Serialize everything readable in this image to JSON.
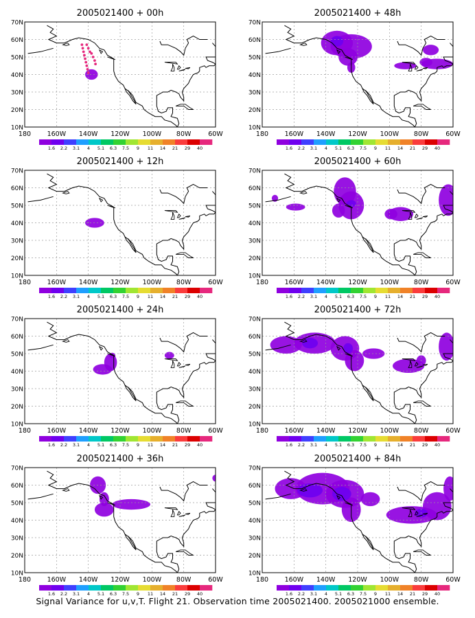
{
  "figure": {
    "caption": "Signal Variance for u,v,T. Flight 21. Observation time 2005021400. 2005021000 ensemble.",
    "palette": [
      "#8f00df",
      "#6f00ef",
      "#3f3fff",
      "#1f9fff",
      "#00c8c8",
      "#00c864",
      "#32d232",
      "#a0e632",
      "#e6dc32",
      "#e6af2d",
      "#f08228",
      "#fa3c3c",
      "#dc0000",
      "#e6287d"
    ],
    "colorbar_labels": [
      "1.6",
      "2.2",
      "3.1",
      "4",
      "5.1",
      "6.3",
      "7.5",
      "9",
      "11",
      "14",
      "21",
      "29",
      "40"
    ],
    "x_ticks": [
      "180",
      "160W",
      "140W",
      "120W",
      "100W",
      "80W",
      "60W"
    ],
    "y_ticks": [
      "10N",
      "20N",
      "30N",
      "40N",
      "50N",
      "60N",
      "70N"
    ]
  },
  "chart_data": [
    {
      "type": "heatmap",
      "title": "2005021400 + 00h",
      "xlim": [
        -180,
        -60
      ],
      "ylim": [
        10,
        70
      ],
      "observations": [
        [
          -144,
          57
        ],
        [
          -143.5,
          55
        ],
        [
          -143,
          53
        ],
        [
          -142.5,
          51
        ],
        [
          -142,
          49
        ],
        [
          -141.5,
          47
        ],
        [
          -141,
          45
        ],
        [
          -140.5,
          43
        ],
        [
          -140,
          41
        ],
        [
          -141,
          57
        ],
        [
          -140,
          55
        ],
        [
          -139,
          53
        ],
        [
          -138,
          52
        ],
        [
          -137,
          50
        ],
        [
          -136,
          48
        ],
        [
          -135.5,
          46
        ]
      ],
      "blobs": [
        {
          "lon": -138,
          "lat": 40,
          "rlon": 4,
          "rlat": 3,
          "level": 1
        }
      ]
    },
    {
      "type": "heatmap",
      "title": "2005021400 + 12h",
      "xlim": [
        -180,
        -60
      ],
      "ylim": [
        10,
        70
      ],
      "blobs": [
        {
          "lon": -136,
          "lat": 40,
          "rlon": 6,
          "rlat": 2.8,
          "level": 1
        }
      ]
    },
    {
      "type": "heatmap",
      "title": "2005021400 + 24h",
      "xlim": [
        -180,
        -60
      ],
      "ylim": [
        10,
        70
      ],
      "blobs": [
        {
          "lon": -131,
          "lat": 41,
          "rlon": 6,
          "rlat": 3,
          "level": 1
        },
        {
          "lon": -126,
          "lat": 45,
          "rlon": 4,
          "rlat": 5,
          "level": 1
        },
        {
          "lon": -125,
          "lat": 49,
          "rlon": 2,
          "rlat": 1.5,
          "level": 1
        },
        {
          "lon": -89,
          "lat": 49,
          "rlon": 3,
          "rlat": 2,
          "level": 1
        }
      ]
    },
    {
      "type": "heatmap",
      "title": "2005021400 + 36h",
      "xlim": [
        -180,
        -60
      ],
      "ylim": [
        10,
        70
      ],
      "blobs": [
        {
          "lon": -134,
          "lat": 60,
          "rlon": 5,
          "rlat": 5,
          "level": 1
        },
        {
          "lon": -130,
          "lat": 52,
          "rlon": 3,
          "rlat": 4,
          "level": 1
        },
        {
          "lon": -130,
          "lat": 46,
          "rlon": 6,
          "rlat": 4,
          "level": 1
        },
        {
          "lon": -113,
          "lat": 49,
          "rlon": 12,
          "rlat": 3,
          "level": 1
        },
        {
          "lon": -60,
          "lat": 64,
          "rlon": 2,
          "rlat": 2,
          "level": 1
        }
      ]
    },
    {
      "type": "heatmap",
      "title": "2005021400 + 48h",
      "xlim": [
        -180,
        -60
      ],
      "ylim": [
        10,
        70
      ],
      "blobs": [
        {
          "lon": -133,
          "lat": 58,
          "rlon": 10,
          "rlat": 7,
          "level": 1
        },
        {
          "lon": -124,
          "lat": 56,
          "rlon": 13,
          "rlat": 7,
          "level": 1
        },
        {
          "lon": -126,
          "lat": 50,
          "rlon": 6,
          "rlat": 5,
          "level": 1
        },
        {
          "lon": -124,
          "lat": 44,
          "rlon": 2.5,
          "rlat": 3,
          "level": 1
        },
        {
          "lon": -133,
          "lat": 59,
          "rlon": 4,
          "rlat": 3,
          "level": 2
        },
        {
          "lon": -90,
          "lat": 45,
          "rlon": 7,
          "rlat": 2,
          "level": 1
        },
        {
          "lon": -74,
          "lat": 54,
          "rlon": 5,
          "rlat": 3,
          "level": 1
        },
        {
          "lon": -70,
          "lat": 46,
          "rlon": 10,
          "rlat": 3,
          "level": 1
        },
        {
          "lon": -77,
          "lat": 47,
          "rlon": 4,
          "rlat": 2.5,
          "level": 1
        }
      ]
    },
    {
      "type": "heatmap",
      "title": "2005021400 + 60h",
      "xlim": [
        -180,
        -60
      ],
      "ylim": [
        10,
        70
      ],
      "blobs": [
        {
          "lon": -172,
          "lat": 54,
          "rlon": 2,
          "rlat": 2,
          "level": 1
        },
        {
          "lon": -159,
          "lat": 49,
          "rlon": 6,
          "rlat": 2,
          "level": 1
        },
        {
          "lon": -128,
          "lat": 58,
          "rlon": 7,
          "rlat": 8,
          "level": 1
        },
        {
          "lon": -124,
          "lat": 50,
          "rlon": 8,
          "rlat": 8,
          "level": 1
        },
        {
          "lon": -132,
          "lat": 47,
          "rlon": 4,
          "rlat": 4,
          "level": 1
        },
        {
          "lon": -124,
          "lat": 51,
          "rlon": 3,
          "rlat": 2,
          "level": 2
        },
        {
          "lon": -93,
          "lat": 45,
          "rlon": 8,
          "rlat": 4,
          "level": 1
        },
        {
          "lon": -99,
          "lat": 45,
          "rlon": 4,
          "rlat": 3,
          "level": 1
        },
        {
          "lon": -63,
          "lat": 53,
          "rlon": 6,
          "rlat": 9,
          "level": 1
        }
      ]
    },
    {
      "type": "heatmap",
      "title": "2005021400 + 72h",
      "xlim": [
        -180,
        -60
      ],
      "ylim": [
        10,
        70
      ],
      "blobs": [
        {
          "lon": -165,
          "lat": 55,
          "rlon": 10,
          "rlat": 5,
          "level": 1
        },
        {
          "lon": -147,
          "lat": 56,
          "rlon": 13,
          "rlat": 6,
          "level": 1
        },
        {
          "lon": -128,
          "lat": 53,
          "rlon": 9,
          "rlat": 7,
          "level": 1
        },
        {
          "lon": -122,
          "lat": 46,
          "rlon": 6,
          "rlat": 6,
          "level": 1
        },
        {
          "lon": -110,
          "lat": 50,
          "rlon": 7,
          "rlat": 3,
          "level": 1
        },
        {
          "lon": -150,
          "lat": 56,
          "rlon": 5,
          "rlat": 3,
          "level": 2
        },
        {
          "lon": -126,
          "lat": 53,
          "rlon": 3,
          "rlat": 3,
          "level": 2
        },
        {
          "lon": -88,
          "lat": 43,
          "rlon": 10,
          "rlat": 4,
          "level": 1
        },
        {
          "lon": -80,
          "lat": 46,
          "rlon": 3,
          "rlat": 3,
          "level": 1
        },
        {
          "lon": -64,
          "lat": 54,
          "rlon": 5,
          "rlat": 8,
          "level": 1
        }
      ]
    },
    {
      "type": "heatmap",
      "title": "2005021400 + 84h",
      "xlim": [
        -180,
        -60
      ],
      "ylim": [
        10,
        70
      ],
      "blobs": [
        {
          "lon": -162,
          "lat": 58,
          "rlon": 10,
          "rlat": 6,
          "level": 1
        },
        {
          "lon": -142,
          "lat": 58,
          "rlon": 17,
          "rlat": 9,
          "level": 1
        },
        {
          "lon": -128,
          "lat": 55,
          "rlon": 12,
          "rlat": 8,
          "level": 1
        },
        {
          "lon": -124,
          "lat": 46,
          "rlon": 6,
          "rlat": 7,
          "level": 1
        },
        {
          "lon": -112,
          "lat": 52,
          "rlon": 6,
          "rlat": 4,
          "level": 1
        },
        {
          "lon": -150,
          "lat": 57,
          "rlon": 8,
          "rlat": 4,
          "level": 2
        },
        {
          "lon": -130,
          "lat": 55,
          "rlon": 6,
          "rlat": 4,
          "level": 2
        },
        {
          "lon": -86,
          "lat": 43,
          "rlon": 16,
          "rlat": 5,
          "level": 1
        },
        {
          "lon": -70,
          "lat": 48,
          "rlon": 9,
          "rlat": 8,
          "level": 1
        },
        {
          "lon": -62,
          "lat": 58,
          "rlon": 4,
          "rlat": 7,
          "level": 1
        },
        {
          "lon": -80,
          "lat": 44,
          "rlon": 4,
          "rlat": 2.5,
          "level": 2
        }
      ]
    }
  ]
}
